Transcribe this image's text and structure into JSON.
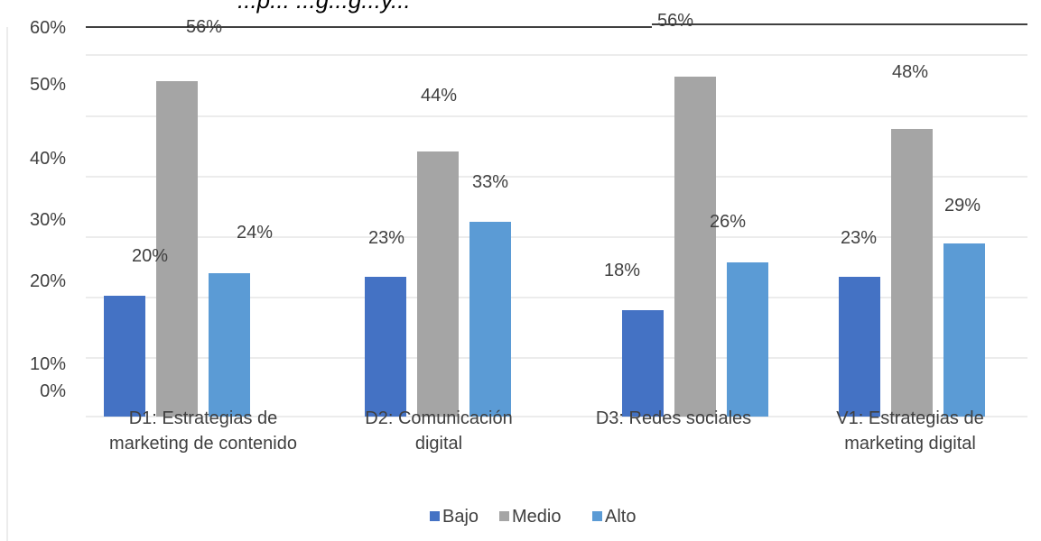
{
  "chart_data": {
    "type": "bar",
    "title": "...p... ...g...g...y...",
    "categories": [
      [
        "D1: Estrategias de",
        "marketing de contenido"
      ],
      [
        "D2: Comunicación",
        "digital"
      ],
      [
        "D3: Redes sociales"
      ],
      [
        "V1: Estrategias de",
        "marketing digital"
      ]
    ],
    "series": [
      {
        "name": "Bajo",
        "color": "#4472C4",
        "values": [
          20,
          23,
          18,
          23
        ]
      },
      {
        "name": "Medio",
        "color": "#A5A5A5",
        "values": [
          56,
          44,
          56,
          48
        ]
      },
      {
        "name": "Alto",
        "color": "#5B9BD5",
        "values": [
          24,
          33,
          26,
          29
        ]
      }
    ],
    "y_tick_labels": [
      "0%",
      "10%",
      "20%",
      "30%",
      "40%",
      "50%",
      "60%"
    ],
    "ylim": [
      0,
      60
    ],
    "value_suffix": "%",
    "grid": true,
    "legend_position": "bottom"
  }
}
